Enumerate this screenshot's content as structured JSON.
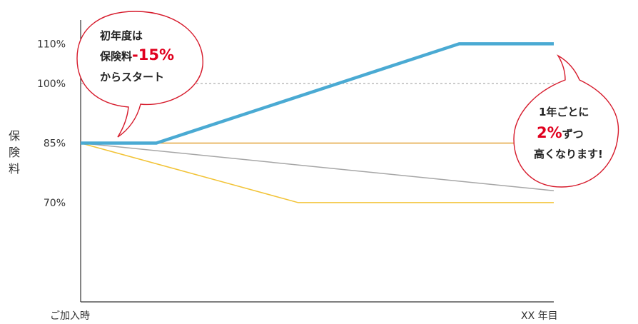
{
  "chart_data": {
    "type": "line",
    "ylabel": "保険料",
    "x_tick_labels": [
      "ご加入時",
      "XX 年目"
    ],
    "y_ticks": [
      {
        "value": 110,
        "label": "110%"
      },
      {
        "value": 100,
        "label": "100%"
      },
      {
        "value": 85,
        "label": "85%"
      },
      {
        "value": 70,
        "label": "70%"
      }
    ],
    "xlim": [
      0,
      100
    ],
    "ylim": [
      45,
      116
    ],
    "reference_line": 100,
    "series": [
      {
        "color": "#4aaad3",
        "points": [
          [
            0,
            85
          ],
          [
            16,
            85
          ],
          [
            80,
            110
          ],
          [
            100,
            110
          ]
        ]
      },
      {
        "color": "#e2a33a",
        "points": [
          [
            0,
            85
          ],
          [
            100,
            85
          ]
        ]
      },
      {
        "color": "#a6a6a6",
        "points": [
          [
            0,
            85
          ],
          [
            100,
            73
          ]
        ]
      },
      {
        "color": "#f2c336",
        "points": [
          [
            0,
            85
          ],
          [
            46,
            70
          ],
          [
            100,
            70
          ]
        ]
      }
    ]
  },
  "bubble_left": {
    "line1": "初年度は",
    "line2_prefix": "保険料",
    "line2_accent": "-15%",
    "line3": "からスタート"
  },
  "bubble_right": {
    "line1": "1年ごとに",
    "line2_accent": "2%",
    "line2_suffix": "ずつ",
    "line3": "高くなります!"
  },
  "colors": {
    "accent": "#e0001e",
    "bubble_border": "#d61a2b"
  }
}
